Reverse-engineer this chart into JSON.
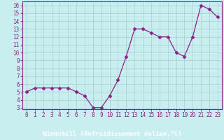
{
  "x": [
    0,
    1,
    2,
    3,
    4,
    5,
    6,
    7,
    8,
    9,
    10,
    11,
    12,
    13,
    14,
    15,
    16,
    17,
    18,
    19,
    20,
    21,
    22,
    23
  ],
  "y": [
    5.0,
    5.5,
    5.5,
    5.5,
    5.5,
    5.5,
    5.0,
    4.5,
    3.0,
    3.0,
    4.5,
    6.5,
    9.5,
    13.0,
    13.0,
    12.5,
    12.0,
    12.0,
    10.0,
    9.5,
    12.0,
    16.0,
    15.5,
    14.5
  ],
  "line_color": "#882288",
  "marker": "D",
  "marker_size": 2.5,
  "background_color": "#c8eef0",
  "grid_color": "#aacccc",
  "xlabel": "Windchill (Refroidissement éolien,°C)",
  "xlabel_bg": "#993399",
  "xlim": [
    -0.5,
    23.5
  ],
  "ymin": 2.8,
  "ymax": 16.5,
  "yticks": [
    3,
    4,
    5,
    6,
    7,
    8,
    9,
    10,
    11,
    12,
    13,
    14,
    15,
    16
  ],
  "xticks": [
    0,
    1,
    2,
    3,
    4,
    5,
    6,
    7,
    8,
    9,
    10,
    11,
    12,
    13,
    14,
    15,
    16,
    17,
    18,
    19,
    20,
    21,
    22,
    23
  ],
  "tick_fontsize": 5.5,
  "xlabel_fontsize": 6.5,
  "label_color": "#882288",
  "axis_color": "#882288",
  "xlabel_text_color": "#ffffff"
}
